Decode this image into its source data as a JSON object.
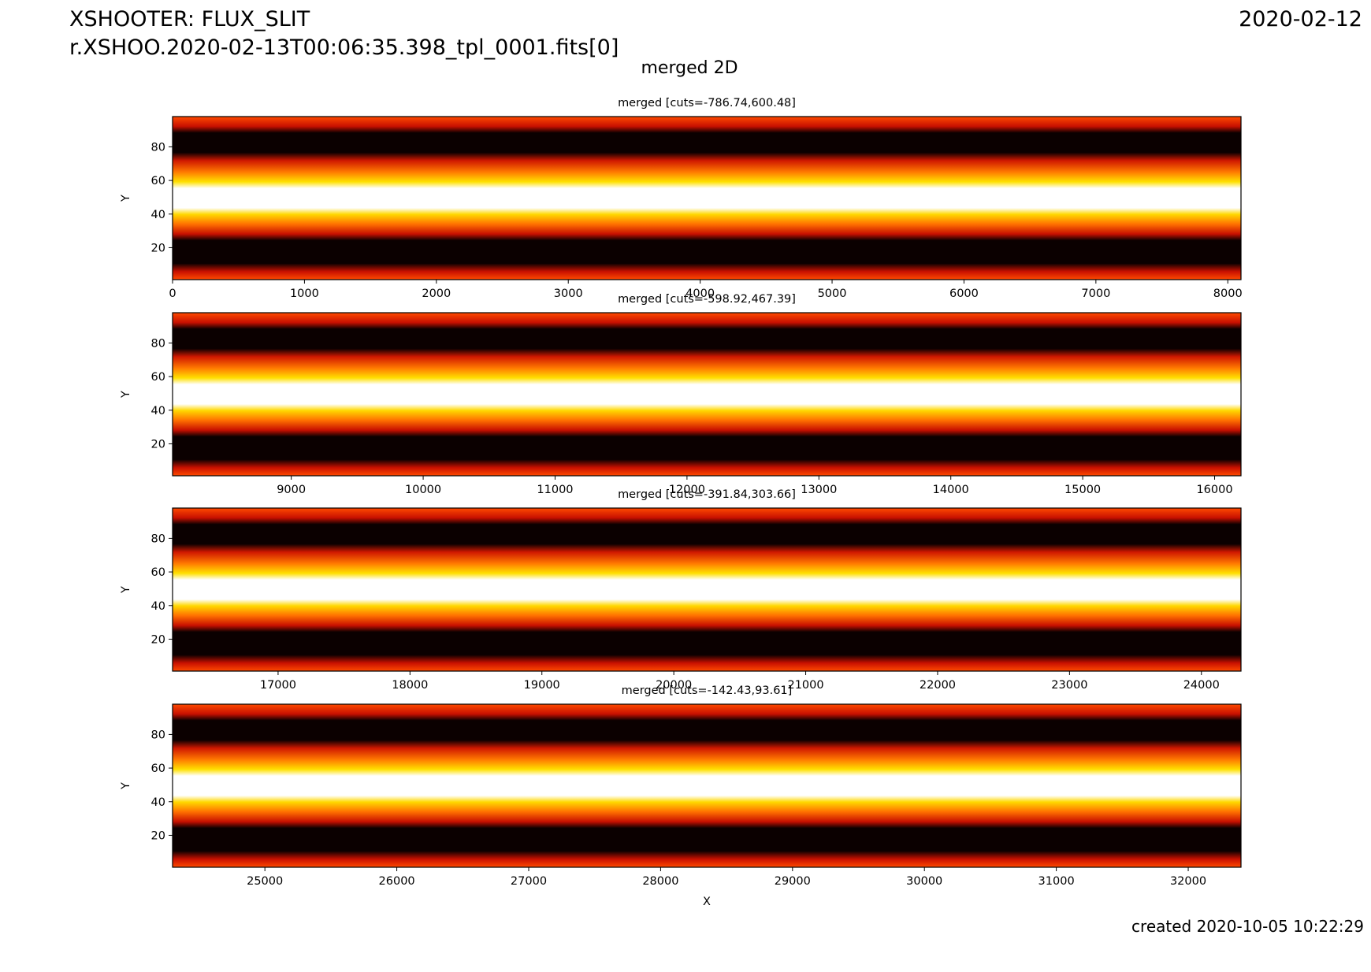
{
  "header": {
    "title": "XSHOOTER: FLUX_SLIT",
    "file": "r.XSHOO.2020-02-13T00:06:35.398_tpl_0001.fits[0]",
    "date": "2020-02-12",
    "suptitle": "merged 2D",
    "created": "created 2020-10-05 10:22:29"
  },
  "chart_data": [
    {
      "type": "image",
      "title": "merged [cuts=-786.74,600.48]",
      "y_label": "Y",
      "xlim": [
        0,
        8100
      ],
      "ylim": [
        1,
        98
      ],
      "xticks": [
        0,
        1000,
        2000,
        3000,
        4000,
        5000,
        6000,
        7000,
        8000
      ],
      "yticks": [
        20,
        40,
        60,
        80
      ],
      "colormap": "hot"
    },
    {
      "type": "image",
      "title": "merged [cuts=-598.92,467.39]",
      "y_label": "Y",
      "xlim": [
        8100,
        16200
      ],
      "ylim": [
        1,
        98
      ],
      "xticks": [
        9000,
        10000,
        11000,
        12000,
        13000,
        14000,
        15000,
        16000
      ],
      "yticks": [
        20,
        40,
        60,
        80
      ],
      "colormap": "hot"
    },
    {
      "type": "image",
      "title": "merged [cuts=-391.84,303.66]",
      "y_label": "Y",
      "xlim": [
        16200,
        24300
      ],
      "ylim": [
        1,
        98
      ],
      "xticks": [
        17000,
        18000,
        19000,
        20000,
        21000,
        22000,
        23000,
        24000
      ],
      "yticks": [
        20,
        40,
        60,
        80
      ],
      "colormap": "hot"
    },
    {
      "type": "image",
      "title": "merged [cuts=-142.43,93.61]",
      "y_label": "Y",
      "x_label": "X",
      "xlim": [
        24300,
        32400
      ],
      "ylim": [
        1,
        98
      ],
      "xticks": [
        25000,
        26000,
        27000,
        28000,
        29000,
        30000,
        31000,
        32000
      ],
      "yticks": [
        20,
        40,
        60,
        80
      ],
      "colormap": "hot"
    }
  ]
}
